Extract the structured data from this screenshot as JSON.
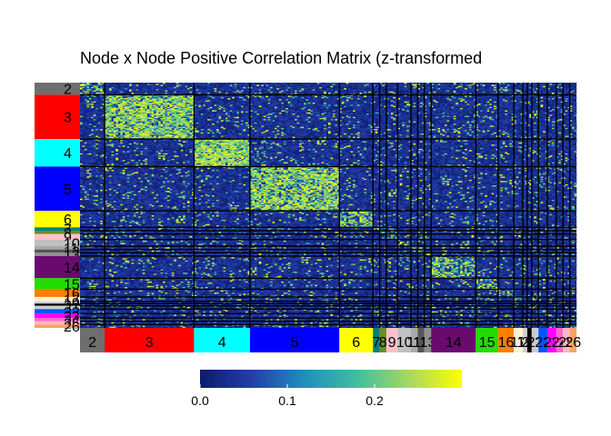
{
  "title": "Node x Node Positive Correlation Matrix (z-transformed",
  "chart_data": {
    "type": "heatmap",
    "title": "Node x Node Positive Correlation Matrix (z-transformed",
    "communities": [
      {
        "label": "2",
        "color": "#6e6e6e",
        "size": 11
      },
      {
        "label": "3",
        "color": "#ff0000",
        "size": 40
      },
      {
        "label": "4",
        "color": "#00ffff",
        "size": 25
      },
      {
        "label": "5",
        "color": "#0000ff",
        "size": 40
      },
      {
        "label": "6",
        "color": "#ffff00",
        "size": 15
      },
      {
        "label": "7",
        "color": "#008080",
        "size": 3
      },
      {
        "label": "8",
        "color": "#6b8e23",
        "size": 3
      },
      {
        "label": "9",
        "color": "#ffc0cb",
        "size": 5
      },
      {
        "label": "10",
        "color": "#c0c0c0",
        "size": 6
      },
      {
        "label": "11",
        "color": "#a9a9a9",
        "size": 3
      },
      {
        "label": "12",
        "color": "#555555",
        "size": 3
      },
      {
        "label": "13",
        "color": "#909090",
        "size": 3
      },
      {
        "label": "14",
        "color": "#6a0a6e",
        "size": 20
      },
      {
        "label": "15",
        "color": "#22dd00",
        "size": 10
      },
      {
        "label": "16",
        "color": "#ff7f00",
        "size": 7
      },
      {
        "label": "17",
        "color": "#fff0d0",
        "size": 4
      },
      {
        "label": "19",
        "color": "#d0d0d0",
        "size": 2
      },
      {
        "label": "20",
        "color": "#000000",
        "size": 2
      },
      {
        "label": "21",
        "color": "#cccccc",
        "size": 3
      },
      {
        "label": "22",
        "color": "#0055ff",
        "size": 4
      },
      {
        "label": "23",
        "color": "#ff00ff",
        "size": 4
      },
      {
        "label": "24",
        "color": "#ff66cc",
        "size": 3
      },
      {
        "label": "25",
        "color": "#ffb6c1",
        "size": 3
      },
      {
        "label": "26",
        "color": "#f4a460",
        "size": 3
      }
    ],
    "value_range": [
      0,
      0.3
    ],
    "colorbar": {
      "ticks": [
        0.0,
        0.1,
        0.2
      ],
      "tick_labels": [
        "0.0",
        "0.1",
        "0.2"
      ],
      "colors": [
        "#0d1a6e",
        "#233fa8",
        "#1f8fbf",
        "#3fbf9f",
        "#a8d860",
        "#ffff00"
      ]
    }
  }
}
